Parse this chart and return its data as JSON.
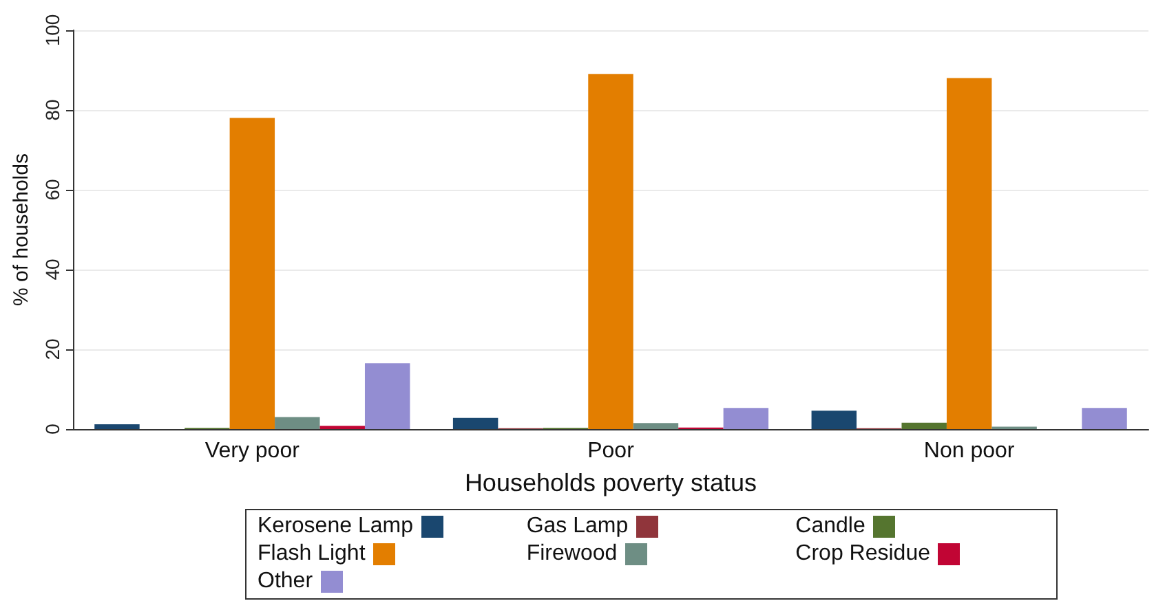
{
  "chart_data": {
    "type": "bar",
    "xlabel": "Households poverty status",
    "ylabel": "% of households",
    "categories": [
      "Very poor",
      "Poor",
      "Non poor"
    ],
    "series": [
      {
        "name": "Kerosene Lamp",
        "color": "#1a476f",
        "values": [
          1.2,
          2.8,
          4.6
        ]
      },
      {
        "name": "Gas Lamp",
        "color": "#90353b",
        "values": [
          0,
          0.2,
          0.2
        ]
      },
      {
        "name": "Candle",
        "color": "#55752f",
        "values": [
          0.3,
          0.3,
          1.6
        ]
      },
      {
        "name": "Flash Light",
        "color": "#e37e00",
        "values": [
          78,
          89,
          88
        ]
      },
      {
        "name": "Firewood",
        "color": "#6e8e84",
        "values": [
          3,
          1.5,
          0.6
        ]
      },
      {
        "name": "Crop Residue",
        "color": "#c10534",
        "values": [
          0.8,
          0.4,
          0
        ]
      },
      {
        "name": "Other",
        "color": "#938dd2",
        "values": [
          16.5,
          5.3,
          5.3
        ]
      }
    ],
    "ylim": [
      0,
      100
    ],
    "yticks": [
      0,
      20,
      40,
      60,
      80,
      100
    ],
    "grid": "y",
    "legend": "bottom"
  }
}
